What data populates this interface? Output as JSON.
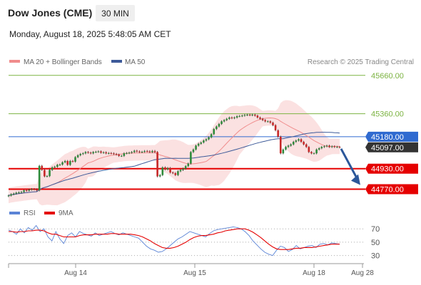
{
  "header": {
    "title": "Dow Jones (CME)",
    "timeframe": "30 MIN",
    "datetime": "Monday, August 18, 2025 5:48:05 AM CET"
  },
  "legend": {
    "ma20": {
      "label": "MA 20 + Bollinger Bands",
      "color": "#f08c8c"
    },
    "ma50": {
      "label": "MA 50",
      "color": "#3d5a99"
    },
    "credit": "Research © 2025 Trading Central"
  },
  "price_levels": [
    {
      "value": 45660.0,
      "label": "45660.00",
      "kind": "target",
      "color": "#7cb342"
    },
    {
      "value": 45360.0,
      "label": "45360.00",
      "kind": "target",
      "color": "#7cb342"
    },
    {
      "value": 45180.0,
      "label": "45180.00",
      "kind": "pivot",
      "color": "#2f6ad0"
    },
    {
      "value": 45097.0,
      "label": "45097.00",
      "kind": "last",
      "color": "#333333"
    },
    {
      "value": 44930.0,
      "label": "44930.00",
      "kind": "support",
      "color": "#e50000"
    },
    {
      "value": 44770.0,
      "label": "44770.00",
      "kind": "support",
      "color": "#e50000"
    }
  ],
  "rsi_legend": {
    "rsi": {
      "label": "RSI",
      "color": "#5b84d6"
    },
    "ma9": {
      "label": "9MA",
      "color": "#e50000"
    }
  },
  "rsi_levels": [
    {
      "value": 70,
      "label": "70"
    },
    {
      "value": 50,
      "label": "50"
    },
    {
      "value": 30,
      "label": "30"
    }
  ],
  "x_labels": [
    "Aug 14",
    "Aug 15",
    "Aug 18",
    "Aug 28"
  ],
  "chart_data": [
    {
      "type": "candlestick",
      "title": "",
      "ylim": [
        44700,
        45720
      ],
      "x_ticks": [
        "Aug 14",
        "Aug 15",
        "Aug 18",
        "Aug 28"
      ],
      "close": [
        44720,
        44730,
        44735,
        44742,
        44745,
        44748,
        44760,
        44758,
        44765,
        44770,
        44768,
        44760,
        44952,
        44920,
        44870,
        44872,
        44920,
        44940,
        44945,
        44960,
        44962,
        44980,
        44990,
        44960,
        44990,
        44985,
        45020,
        45035,
        45045,
        45050,
        45060,
        45055,
        45050,
        45060,
        45062,
        45065,
        45055,
        45058,
        45050,
        45052,
        45050,
        45045,
        45040,
        45030,
        45030,
        45050,
        45052,
        45055,
        45060,
        45070,
        45065,
        45060,
        45062,
        45068,
        45066,
        45060,
        45068,
        45060,
        44870,
        44880,
        44940,
        44925,
        44935,
        44900,
        44895,
        44880,
        44910,
        44920,
        44930,
        44950,
        44970,
        45060,
        45080,
        45110,
        45125,
        45135,
        45150,
        45160,
        45175,
        45200,
        45240,
        45260,
        45280,
        45300,
        45310,
        45320,
        45330,
        45325,
        45330,
        45340,
        45342,
        45345,
        45350,
        45352,
        45348,
        45352,
        45345,
        45330,
        45320,
        45310,
        45300,
        45300,
        45290,
        45270,
        45230,
        45180,
        45050,
        45080,
        45100,
        45110,
        45120,
        45140,
        45150,
        45160,
        45140,
        45120,
        45100,
        45060,
        45050,
        45050,
        45080,
        45090,
        45100,
        45105,
        45110,
        45100,
        45105,
        45100,
        45100,
        45097
      ],
      "overlays": [
        {
          "name": "MA 20 + Bollinger Bands",
          "color": "#f08c8c"
        },
        {
          "name": "MA 50",
          "color": "#3d5a99"
        }
      ],
      "hlines": [
        45660,
        45360,
        45180,
        44930,
        44770
      ],
      "last": 45097,
      "forecast": {
        "from": 45097,
        "to": 44780,
        "direction": "down"
      }
    },
    {
      "type": "line",
      "title": "",
      "ylim": [
        20,
        82
      ],
      "levels": [
        70,
        50,
        30
      ],
      "series": [
        {
          "name": "RSI",
          "values": [
            68,
            66,
            62,
            70,
            64,
            72,
            68,
            75,
            66,
            70,
            58,
            52,
            66,
            55,
            48,
            60,
            64,
            58,
            66,
            63,
            61,
            59,
            64,
            60,
            62,
            64,
            66,
            63,
            61,
            64,
            62,
            60,
            58,
            56,
            50,
            44,
            40,
            38,
            35,
            36,
            40,
            45,
            50,
            55,
            58,
            62,
            66,
            64,
            62,
            60,
            58,
            63,
            67,
            69,
            70,
            71,
            72,
            73,
            72,
            70,
            66,
            60,
            52,
            46,
            40,
            35,
            32,
            30,
            38,
            44,
            42,
            36,
            39,
            45,
            40,
            42,
            44,
            45,
            42,
            47,
            48,
            46,
            49,
            48,
            47
          ]
        },
        {
          "name": "9MA",
          "values": [
            66,
            66,
            65,
            66,
            66,
            67,
            67,
            68,
            68,
            67,
            64,
            62,
            62,
            60,
            58,
            58,
            58,
            58,
            60,
            61,
            61,
            61,
            62,
            62,
            62,
            62,
            63,
            63,
            62,
            62,
            62,
            62,
            61,
            60,
            58,
            55,
            52,
            48,
            45,
            42,
            41,
            41,
            42,
            44,
            47,
            50,
            54,
            57,
            59,
            60,
            60,
            61,
            62,
            64,
            65,
            67,
            68,
            69,
            70,
            70,
            70,
            68,
            65,
            61,
            57,
            52,
            47,
            43,
            40,
            39,
            39,
            39,
            40,
            41,
            41,
            42,
            42,
            42,
            43,
            44,
            45,
            46,
            47,
            47,
            47
          ]
        }
      ]
    }
  ]
}
